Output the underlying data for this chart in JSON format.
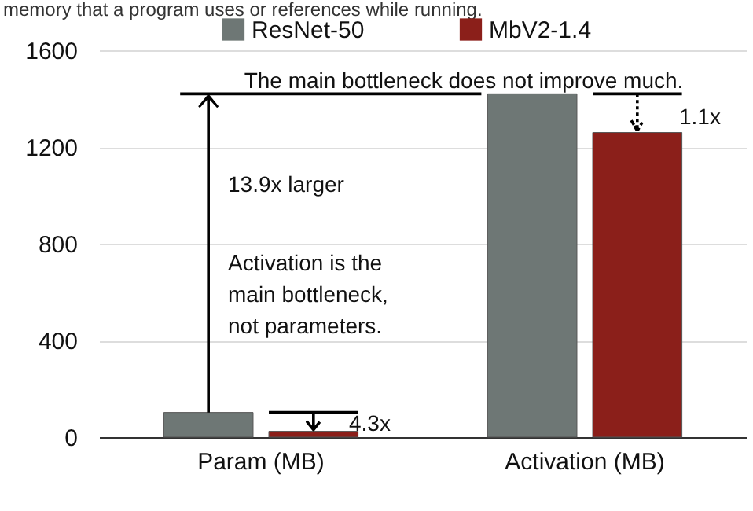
{
  "chart_data": {
    "type": "bar",
    "categories": [
      "Param (MB)",
      "Activation (MB)"
    ],
    "series": [
      {
        "name": "ResNet-50",
        "color": "#6e7775",
        "values": [
          102,
          1420
        ]
      },
      {
        "name": "MbV2-1.4",
        "color": "#8b1f1a",
        "values": [
          24,
          1260
        ]
      }
    ],
    "ylim": [
      0,
      1600
    ],
    "yticks": [
      0,
      400,
      800,
      {
        "value": 1200,
        "label": "1200"
      },
      {
        "value": 1600,
        "label": "1600"
      }
    ],
    "grid": "y",
    "legend": "top",
    "annotations": [
      "memory that a program uses or references while running.",
      "The main bottleneck does not improve much.",
      "1.1x",
      "13.9x larger",
      "Activation is the main bottleneck, not parameters.",
      "4.3x"
    ]
  }
}
